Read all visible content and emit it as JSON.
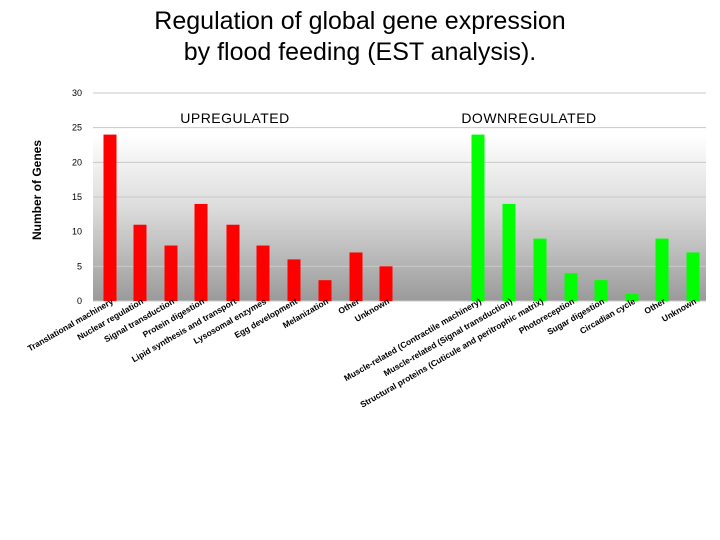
{
  "title": {
    "line1": "Regulation of global gene expression",
    "line2": "by flood feeding (EST analysis)."
  },
  "chart_data": {
    "type": "bar",
    "ylabel": "Number of Genes",
    "ylim": [
      0,
      30
    ],
    "yticks": [
      0,
      5,
      10,
      15,
      20,
      25,
      30
    ],
    "grid": true,
    "background": "gradient grey",
    "groups": [
      {
        "label": "UPREGULATED",
        "color": "#ff0000",
        "categories": [
          "Translational machinery",
          "Nuclear regulation",
          "Signal transduction",
          "Protein digestion",
          "Lipid synthesis and transport",
          "Lysosomal enzymes",
          "Egg development",
          "Melanization",
          "Other",
          "Unknown"
        ],
        "values": [
          24,
          11,
          8,
          14,
          11,
          8,
          6,
          3,
          7,
          5
        ]
      },
      {
        "label": "DOWNREGULATED",
        "color": "#00ff00",
        "categories": [
          "Muscle-related (Contractile machinery)",
          "Muscle-related (Signal transduction)",
          "Structural proteins (Cuticule and peritrophic matrix)",
          "Photoreception",
          "Sugar digestion",
          "Circadian cycle",
          "Other",
          "Unknown"
        ],
        "values": [
          24,
          14,
          9,
          4,
          3,
          1,
          9,
          7
        ]
      }
    ]
  }
}
